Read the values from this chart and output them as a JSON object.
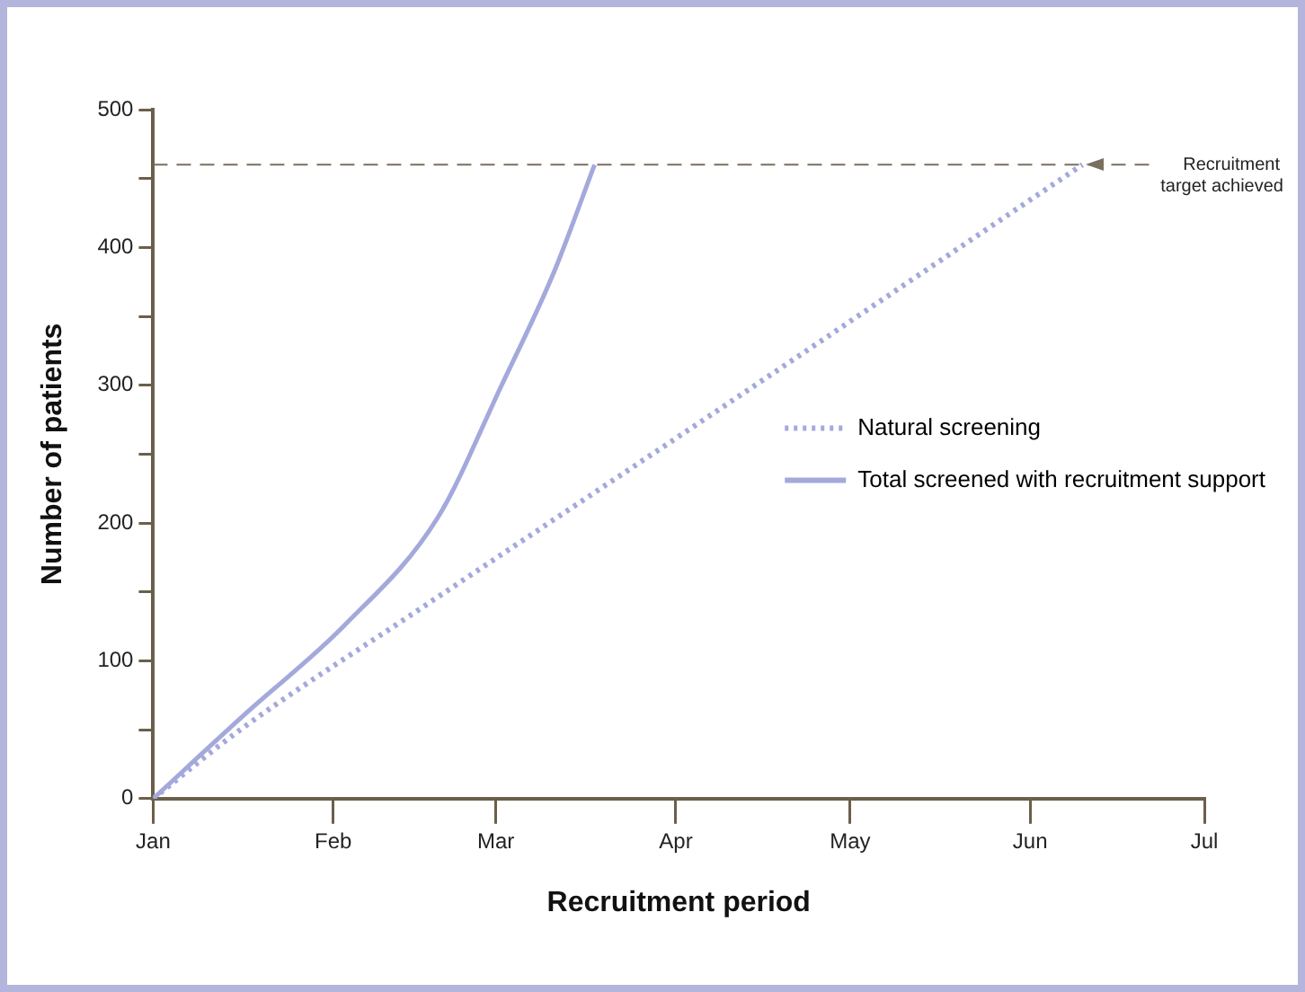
{
  "chart_data": {
    "type": "line",
    "xlabel": "Recruitment period",
    "ylabel": "Number of patients",
    "xlim": [
      "--01-01",
      "--07-01"
    ],
    "xticks": [
      {
        "value": "--01-01",
        "label": "Jan"
      },
      {
        "value": "--02-01",
        "label": "Feb"
      },
      {
        "value": "--03-01",
        "label": "Mar"
      },
      {
        "value": "--04-01",
        "label": "Apr"
      },
      {
        "value": "--05-01",
        "label": "May"
      },
      {
        "value": "--06-01",
        "label": "Jun"
      },
      {
        "value": "--07-01",
        "label": "Jul"
      }
    ],
    "ylim": [
      0,
      500
    ],
    "yticks": [
      0,
      {
        "value": 50,
        "label": null
      },
      100,
      {
        "value": 150,
        "label": null
      },
      200,
      {
        "value": 250,
        "label": null
      },
      300,
      {
        "value": 350,
        "label": null
      },
      400,
      {
        "value": 450,
        "label": null
      },
      500
    ],
    "series": [
      {
        "name": "Natural screening",
        "color": "#a4a9dc",
        "line_style": "dotted",
        "x": [
          "--01-01",
          "--01-16",
          "--02-15",
          "--04-09",
          "--06-10"
        ],
        "values": [
          0,
          50,
          135,
          284,
          460
        ]
      },
      {
        "name": "Total screened with recruitment support",
        "color": "#a4a9dc",
        "line_style": "solid",
        "x": [
          "--01-01",
          "--01-17",
          "--02-03",
          "--02-19",
          "--03-02",
          "--03-11",
          "--03-18"
        ],
        "values": [
          0,
          62,
          126,
          204,
          300,
          382,
          460
        ]
      }
    ],
    "ref_lines": [
      {
        "axis": "y",
        "value": 460,
        "label": "Recruitment target achieved",
        "color": "#7a6f5e",
        "line_style": "dashed"
      }
    ],
    "legend": "right",
    "grid": false,
    "marker": "none"
  }
}
